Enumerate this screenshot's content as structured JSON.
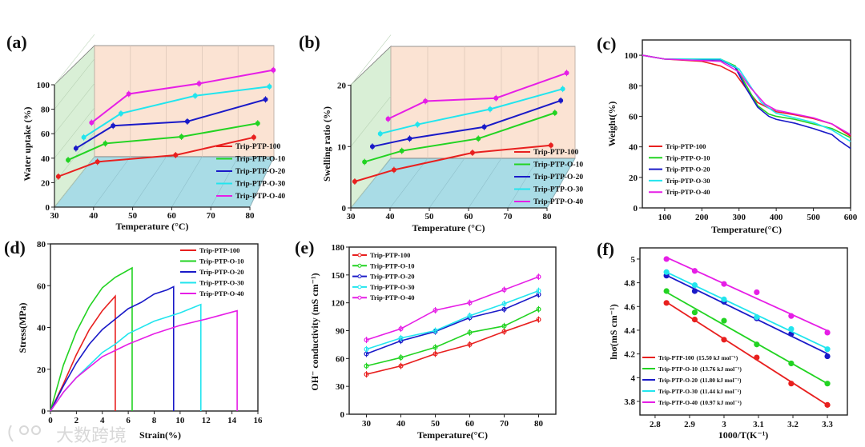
{
  "series_names": [
    "Trip-PTP-100",
    "Trip-PTP-O-10",
    "Trip-PTP-O-20",
    "Trip-PTP-O-30",
    "Trip-PTP-O-40"
  ],
  "colors": [
    "#e8201f",
    "#22d322",
    "#1a1ac8",
    "#22e5ee",
    "#e61ee6"
  ],
  "watermark": "大数跨境",
  "chart_data": [
    {
      "panel": "(a)",
      "type": "line",
      "style": "3d",
      "xlabel": "Temperature (°C)",
      "ylabel": "Water uptake (%)",
      "xlim": [
        30,
        80
      ],
      "ylim": [
        0,
        100
      ],
      "xticks": [
        30,
        40,
        50,
        60,
        70,
        80
      ],
      "yticks": [
        0,
        20,
        40,
        60,
        80,
        100
      ],
      "legend": "right",
      "series": [
        {
          "name": "Trip-PTP-100",
          "x": [
            31,
            41,
            61,
            81
          ],
          "y": [
            25,
            37,
            42.5,
            57
          ]
        },
        {
          "name": "Trip-PTP-O-10",
          "x": [
            33.5,
            43,
            62.5,
            82
          ],
          "y": [
            38.5,
            52,
            57.5,
            68.5
          ]
        },
        {
          "name": "Trip-PTP-O-20",
          "x": [
            35.5,
            45,
            64,
            84
          ],
          "y": [
            48,
            66.5,
            70,
            88
          ]
        },
        {
          "name": "Trip-PTP-O-30",
          "x": [
            37.5,
            47,
            66,
            85
          ],
          "y": [
            57,
            76.5,
            91,
            98.5
          ]
        },
        {
          "name": "Trip-PTP-O-40",
          "x": [
            39.5,
            49,
            67,
            86
          ],
          "y": [
            69,
            92.5,
            101,
            112
          ]
        }
      ]
    },
    {
      "panel": "(b)",
      "type": "line",
      "style": "3d",
      "xlabel": "Temperature (°C)",
      "ylabel": "Swelling ratio (%)",
      "xlim": [
        30,
        80
      ],
      "ylim": [
        0,
        20
      ],
      "xticks": [
        30,
        40,
        50,
        60,
        70,
        80
      ],
      "yticks": [
        0,
        10,
        20
      ],
      "legend": "right",
      "series": [
        {
          "name": "Trip-PTP-100",
          "x": [
            31,
            41,
            61,
            81
          ],
          "y": [
            4.3,
            6.2,
            9.0,
            10.2
          ]
        },
        {
          "name": "Trip-PTP-O-10",
          "x": [
            33.5,
            43,
            62.5,
            82
          ],
          "y": [
            7.5,
            9.3,
            11.3,
            15.5
          ]
        },
        {
          "name": "Trip-PTP-O-20",
          "x": [
            35.5,
            45,
            64,
            83.5
          ],
          "y": [
            10,
            11.3,
            13.2,
            17.5
          ]
        },
        {
          "name": "Trip-PTP-O-30",
          "x": [
            37.5,
            47,
            65.5,
            84
          ],
          "y": [
            12.1,
            13.6,
            16.1,
            19.4
          ]
        },
        {
          "name": "Trip-PTP-O-40",
          "x": [
            39.5,
            49,
            67,
            85
          ],
          "y": [
            14.5,
            17.4,
            17.9,
            22
          ]
        }
      ]
    },
    {
      "panel": "(c)",
      "type": "line",
      "xlabel": "Temperature(°C)",
      "ylabel": "Weight(%)",
      "xlim": [
        40,
        600
      ],
      "ylim": [
        0,
        110
      ],
      "xticks": [
        100,
        200,
        300,
        400,
        500,
        600
      ],
      "yticks": [
        0,
        20,
        40,
        60,
        80,
        100
      ],
      "legend": "bottom-left",
      "series": [
        {
          "name": "Trip-PTP-100",
          "x": [
            40,
            100,
            200,
            250,
            290,
            320,
            350,
            400,
            450,
            500,
            550,
            600
          ],
          "y": [
            100,
            97.5,
            96,
            93,
            88,
            78,
            69,
            63,
            61,
            58.5,
            55,
            47
          ]
        },
        {
          "name": "Trip-PTP-O-10",
          "x": [
            40,
            100,
            250,
            290,
            320,
            350,
            380,
            400,
            450,
            500,
            550,
            600
          ],
          "y": [
            100,
            97.5,
            97.5,
            93,
            80,
            67,
            61.5,
            60,
            58,
            55,
            52,
            46
          ]
        },
        {
          "name": "Trip-PTP-O-20",
          "x": [
            40,
            100,
            250,
            290,
            320,
            350,
            380,
            400,
            450,
            500,
            550,
            570,
            600
          ],
          "y": [
            100,
            97.5,
            97,
            92,
            78,
            66,
            60,
            58,
            55.5,
            52,
            48,
            44,
            39
          ]
        },
        {
          "name": "Trip-PTP-O-30",
          "x": [
            40,
            100,
            250,
            300,
            330,
            360,
            400,
            450,
            500,
            550,
            600
          ],
          "y": [
            100,
            97.5,
            97.5,
            91,
            80,
            69,
            62,
            59,
            56,
            51,
            43.5
          ]
        },
        {
          "name": "Trip-PTP-O-40",
          "x": [
            40,
            100,
            250,
            300,
            330,
            370,
            400,
            450,
            500,
            550,
            600
          ],
          "y": [
            100,
            97.5,
            96,
            89,
            79,
            68,
            64,
            61.5,
            59,
            55,
            48
          ]
        }
      ]
    },
    {
      "panel": "(d)",
      "type": "line",
      "xlabel": "Strain(%)",
      "ylabel": "Stress(MPa)",
      "xlim": [
        0,
        16
      ],
      "ylim": [
        0,
        80
      ],
      "xticks": [
        0,
        2,
        4,
        6,
        8,
        10,
        12,
        14,
        16
      ],
      "yticks": [
        0,
        20,
        40,
        60,
        80
      ],
      "legend": "top-right",
      "series": [
        {
          "name": "Trip-PTP-100",
          "x": [
            0,
            1,
            2,
            3,
            4,
            5,
            5
          ],
          "y": [
            0,
            13,
            27,
            39,
            48,
            55,
            0
          ]
        },
        {
          "name": "Trip-PTP-O-10",
          "x": [
            0,
            1,
            2,
            3,
            4,
            5,
            6.3,
            6.3
          ],
          "y": [
            0,
            22,
            38,
            50,
            59,
            64,
            68.5,
            0
          ]
        },
        {
          "name": "Trip-PTP-O-20",
          "x": [
            0,
            1,
            2,
            3,
            4,
            5,
            6,
            7,
            8,
            9,
            9.5,
            9.5
          ],
          "y": [
            0,
            12,
            23,
            32,
            39,
            44,
            49,
            52,
            56,
            58,
            59.5,
            0
          ]
        },
        {
          "name": "Trip-PTP-O-30",
          "x": [
            0,
            1,
            2,
            3,
            4,
            5,
            6,
            8,
            10,
            11.6,
            11.6
          ],
          "y": [
            0,
            9,
            16,
            22,
            28,
            32,
            37,
            43,
            47,
            51,
            0
          ]
        },
        {
          "name": "Trip-PTP-O-40",
          "x": [
            0,
            1,
            2,
            3,
            4,
            5,
            6,
            8,
            10,
            12,
            14.4,
            14.4
          ],
          "y": [
            0,
            9,
            16,
            21,
            26,
            29,
            32,
            37,
            41,
            44,
            48,
            0
          ]
        }
      ]
    },
    {
      "panel": "(e)",
      "type": "line",
      "xlabel": "Temperature(°C)",
      "ylabel": "OH⁻ conductivity (mS cm⁻¹)",
      "xlim": [
        25,
        85
      ],
      "ylim": [
        0,
        180
      ],
      "xticks": [
        30,
        40,
        50,
        60,
        70,
        80
      ],
      "yticks": [
        0,
        30,
        60,
        90,
        120,
        150,
        180
      ],
      "legend": "top-left",
      "series": [
        {
          "name": "Trip-PTP-100",
          "x": [
            30,
            40,
            50,
            60,
            70,
            80
          ],
          "y": [
            43,
            52,
            65,
            75,
            89,
            102
          ]
        },
        {
          "name": "Trip-PTP-O-10",
          "x": [
            30,
            40,
            50,
            60,
            70,
            80
          ],
          "y": [
            52,
            61,
            72,
            88,
            95,
            113
          ]
        },
        {
          "name": "Trip-PTP-O-20",
          "x": [
            30,
            40,
            50,
            60,
            70,
            80
          ],
          "y": [
            65,
            79,
            89,
            104,
            113,
            129
          ]
        },
        {
          "name": "Trip-PTP-O-30",
          "x": [
            30,
            40,
            50,
            60,
            70,
            80
          ],
          "y": [
            70,
            82,
            90,
            106,
            119,
            133
          ]
        },
        {
          "name": "Trip-PTP-O-40",
          "x": [
            30,
            40,
            50,
            60,
            70,
            80
          ],
          "y": [
            80,
            92,
            112,
            120,
            134,
            148
          ]
        }
      ]
    },
    {
      "panel": "(f)",
      "type": "scatter",
      "fit": "linear",
      "xlabel": "1000/T(K⁻¹)",
      "ylabel": "lnσ(mS cm⁻¹)",
      "xlim": [
        2.756,
        3.358
      ],
      "ylim": [
        3.685,
        5.094
      ],
      "xticks": [
        2.8,
        2.9,
        3.0,
        3.1,
        3.2,
        3.3
      ],
      "yticks": [
        3.8,
        4.0,
        4.2,
        4.4,
        4.6,
        4.8,
        5.0
      ],
      "legend": "bottom-left",
      "series": [
        {
          "name": "Trip-PTP-100",
          "ea": "(15.50 kJ mol⁻¹)",
          "x": [
            2.833,
            2.915,
            3.0,
            3.095,
            3.195,
            3.3
          ],
          "y": [
            4.63,
            4.49,
            4.32,
            4.17,
            3.95,
            3.77
          ]
        },
        {
          "name": "Trip-PTP-O-10",
          "ea": "(13.76 kJ mol⁻¹)",
          "x": [
            2.833,
            2.915,
            3.0,
            3.095,
            3.195,
            3.3
          ],
          "y": [
            4.73,
            4.55,
            4.48,
            4.28,
            4.12,
            3.95
          ]
        },
        {
          "name": "Trip-PTP-O-20",
          "ea": "(11.80 kJ mol⁻¹)",
          "x": [
            2.833,
            2.915,
            3.0,
            3.095,
            3.195,
            3.3
          ],
          "y": [
            4.86,
            4.73,
            4.64,
            4.5,
            4.37,
            4.18
          ]
        },
        {
          "name": "Trip-PTP-O-30",
          "ea": "(11.44 kJ mol⁻¹)",
          "x": [
            2.833,
            2.915,
            3.0,
            3.095,
            3.195,
            3.3
          ],
          "y": [
            4.89,
            4.78,
            4.66,
            4.51,
            4.41,
            4.24
          ]
        },
        {
          "name": "Trip-PTP-O-40",
          "ea": "(10.97 kJ mol⁻¹)",
          "x": [
            2.833,
            2.915,
            3.0,
            3.095,
            3.195,
            3.3
          ],
          "y": [
            5.0,
            4.9,
            4.79,
            4.72,
            4.52,
            4.38
          ]
        }
      ]
    }
  ]
}
